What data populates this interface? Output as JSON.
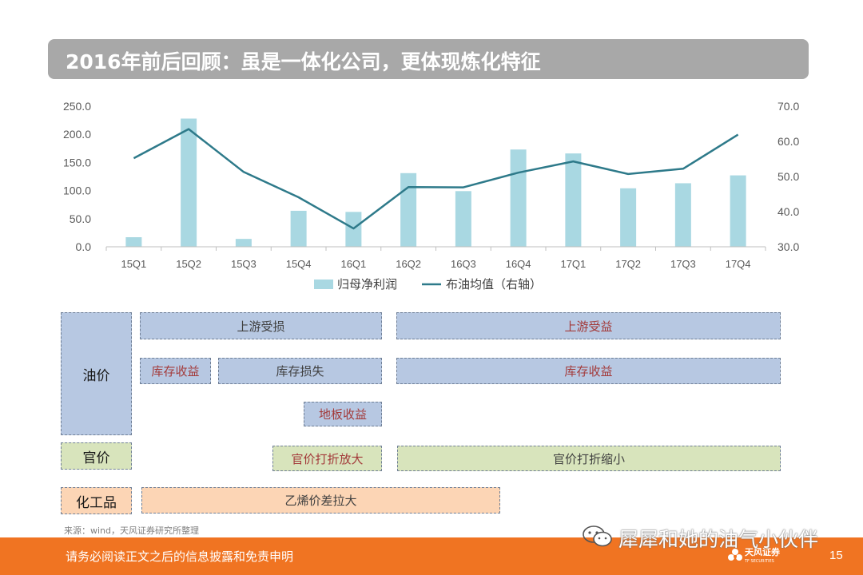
{
  "title": "2016年前后回顾：虽是一体化公司，更体现炼化特征",
  "chart_data": {
    "type": "bar+line",
    "categories": [
      "15Q1",
      "15Q2",
      "15Q3",
      "15Q4",
      "16Q1",
      "16Q2",
      "16Q3",
      "16Q4",
      "17Q1",
      "17Q2",
      "17Q3",
      "17Q4"
    ],
    "series": [
      {
        "name": "归母净利润",
        "type": "bar",
        "axis": "left",
        "color": "#a9d8e2",
        "values": [
          17,
          228,
          14,
          64,
          62,
          131,
          99,
          173,
          166,
          104,
          113,
          127
        ]
      },
      {
        "name": "布油均值（右轴）",
        "type": "line",
        "axis": "right",
        "color": "#2e7a8a",
        "values": [
          55.2,
          63.5,
          51.3,
          44.1,
          35.2,
          47.0,
          46.9,
          51.1,
          54.3,
          50.7,
          52.2,
          61.9
        ]
      }
    ],
    "y_left": {
      "min": 0,
      "max": 250,
      "ticks": [
        "0.0",
        "50.0",
        "100.0",
        "150.0",
        "200.0",
        "250.0"
      ]
    },
    "y_right": {
      "min": 30,
      "max": 70,
      "ticks": [
        "30.0",
        "40.0",
        "50.0",
        "60.0",
        "70.0"
      ]
    },
    "legend_position": "bottom",
    "grid": false
  },
  "categories_left": {
    "oil": "油价",
    "official": "官价",
    "chem": "化工品"
  },
  "boxes": {
    "upstream_loss": "上游受损",
    "upstream_gain": "上游受益",
    "inventory_gain_1": "库存收益",
    "inventory_loss": "库存损失",
    "inventory_gain_2": "库存收益",
    "floor_gain": "地板收益",
    "discount_widen": "官价打折放大",
    "discount_narrow": "官价打折缩小",
    "ethylene_spread": "乙烯价差拉大"
  },
  "source": "来源：wind，天风证券研究所整理",
  "footer": {
    "disclaimer": "请务必阅读正文之后的信息披露和免责申明",
    "page": "15",
    "logo": "天风证券",
    "logo_sub": "TF SECURITIES"
  },
  "watermark": "犀犀和她的油气小伙伴"
}
